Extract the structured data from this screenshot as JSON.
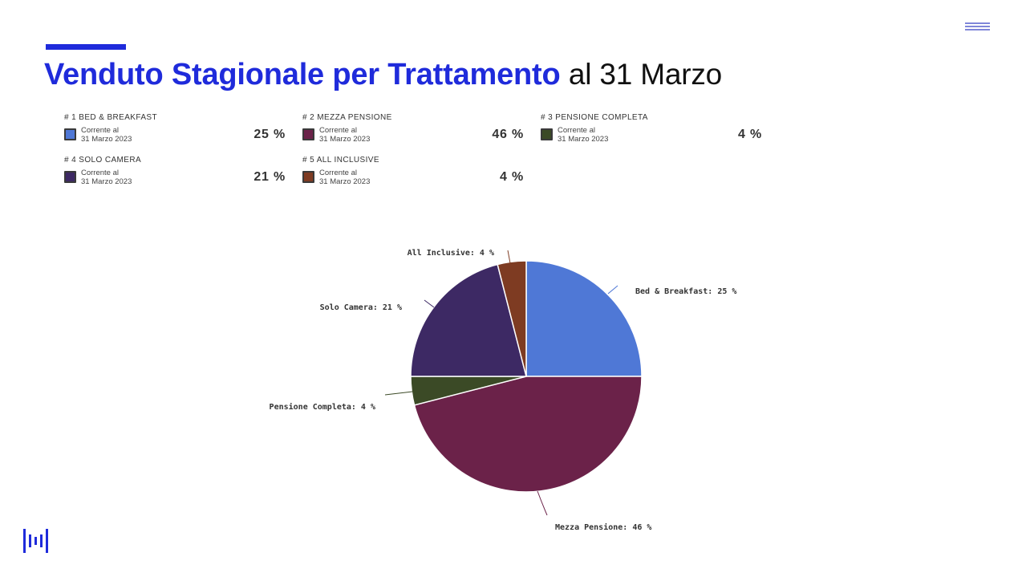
{
  "header": {
    "title_bold": "Venduto Stagionale per Trattamento",
    "title_rest": "al 31 Marzo"
  },
  "legend": {
    "sublabel_line1": "Corrente al",
    "sublabel_line2": "31 Marzo 2023",
    "items": [
      {
        "heading": "# 1 BED & BREAKFAST",
        "value": "25 %",
        "color": "#4f78d6"
      },
      {
        "heading": "# 2 MEZZA PENSIONE",
        "value": "46 %",
        "color": "#6b2249"
      },
      {
        "heading": "# 3 PENSIONE COMPLETA",
        "value": "4 %",
        "color": "#3b4a26"
      },
      {
        "heading": "# 4 SOLO CAMERA",
        "value": "21 %",
        "color": "#3d2964"
      },
      {
        "heading": "# 5 ALL INCLUSIVE",
        "value": "4 %",
        "color": "#7e3b22"
      }
    ]
  },
  "chart_data": {
    "type": "pie",
    "slices": [
      {
        "label": "Bed & Breakfast: 25 %",
        "value": 25,
        "color": "#4f78d6"
      },
      {
        "label": "Mezza Pensione: 46 %",
        "value": 46,
        "color": "#6b2249"
      },
      {
        "label": "Pensione Completa: 4 %",
        "value": 4,
        "color": "#3b4a26"
      },
      {
        "label": "Solo Camera: 21 %",
        "value": 21,
        "color": "#3d2964"
      },
      {
        "label": "All Inclusive: 4 %",
        "value": 4,
        "color": "#7e3b22"
      }
    ]
  }
}
